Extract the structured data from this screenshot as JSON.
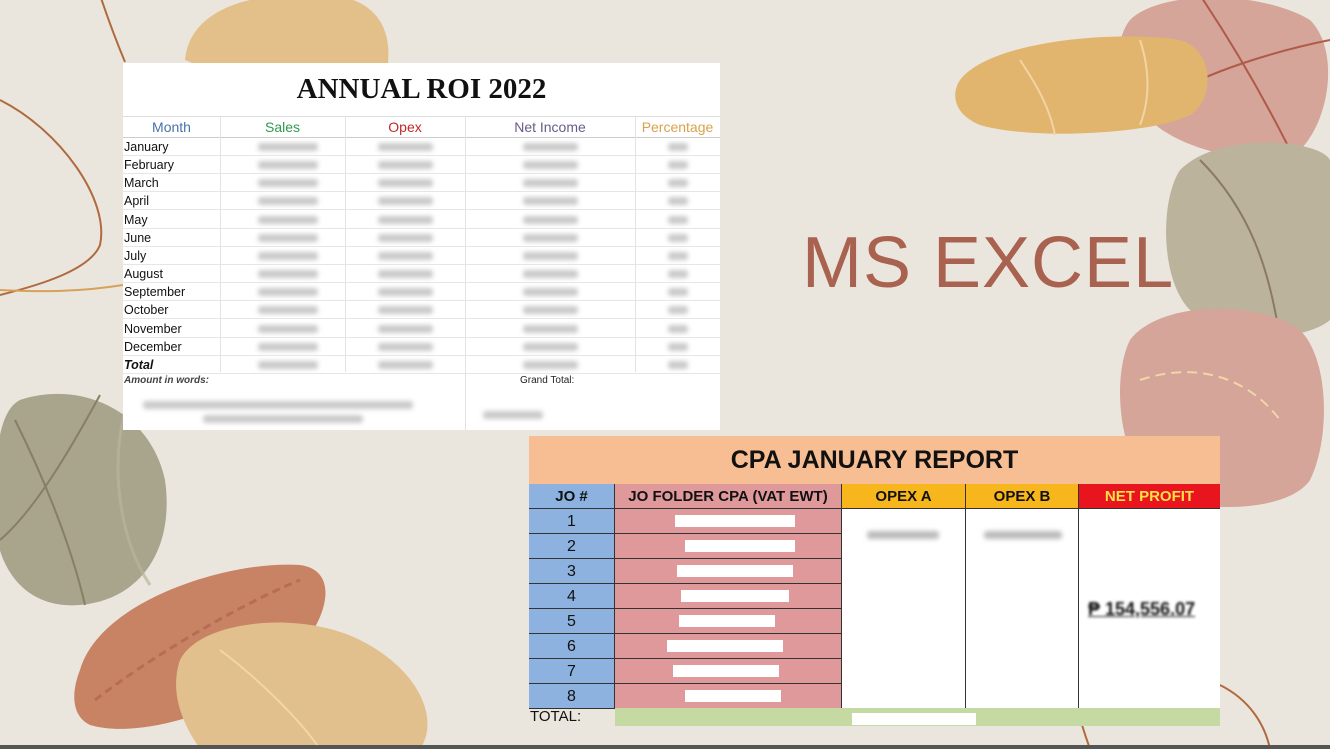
{
  "slide": {
    "title": "MS EXCEL",
    "colors": {
      "background": "#ebe6dd",
      "title": "#a8624f"
    }
  },
  "roi_sheet": {
    "title": "ANNUAL ROI 2022",
    "headers": [
      {
        "label": "Month",
        "color": "#4a72a8"
      },
      {
        "label": "Sales",
        "color": "#2f9a4f"
      },
      {
        "label": "Opex",
        "color": "#c0282a"
      },
      {
        "label": "Net Income",
        "color": "#6a5a8a"
      },
      {
        "label": "Percentage",
        "color": "#d9a24a"
      }
    ],
    "months": [
      "January",
      "February",
      "March",
      "April",
      "May",
      "June",
      "July",
      "August",
      "September",
      "October",
      "November",
      "December"
    ],
    "total_label": "Total",
    "amount_in_words_label": "Amount in words:",
    "grand_total_label": "Grand Total:"
  },
  "cpa_report": {
    "title": "CPA JANUARY REPORT",
    "headers": [
      {
        "label": "JO #",
        "bg": "#8db2e0",
        "color": "#111111"
      },
      {
        "label": "JO FOLDER CPA (VAT EWT)",
        "bg": "#df999b",
        "color": "#111111"
      },
      {
        "label": "OPEX A",
        "bg": "#f6b61c",
        "color": "#111111"
      },
      {
        "label": "OPEX B",
        "bg": "#f6b61c",
        "color": "#111111"
      },
      {
        "label": "NET PROFIT",
        "bg": "#e8141e",
        "color": "#ffe14a"
      }
    ],
    "job_numbers": [
      "1",
      "2",
      "3",
      "4",
      "5",
      "6",
      "7",
      "8"
    ],
    "net_profit_value": "₱ 154,556.07",
    "total_label": "TOTAL:"
  }
}
